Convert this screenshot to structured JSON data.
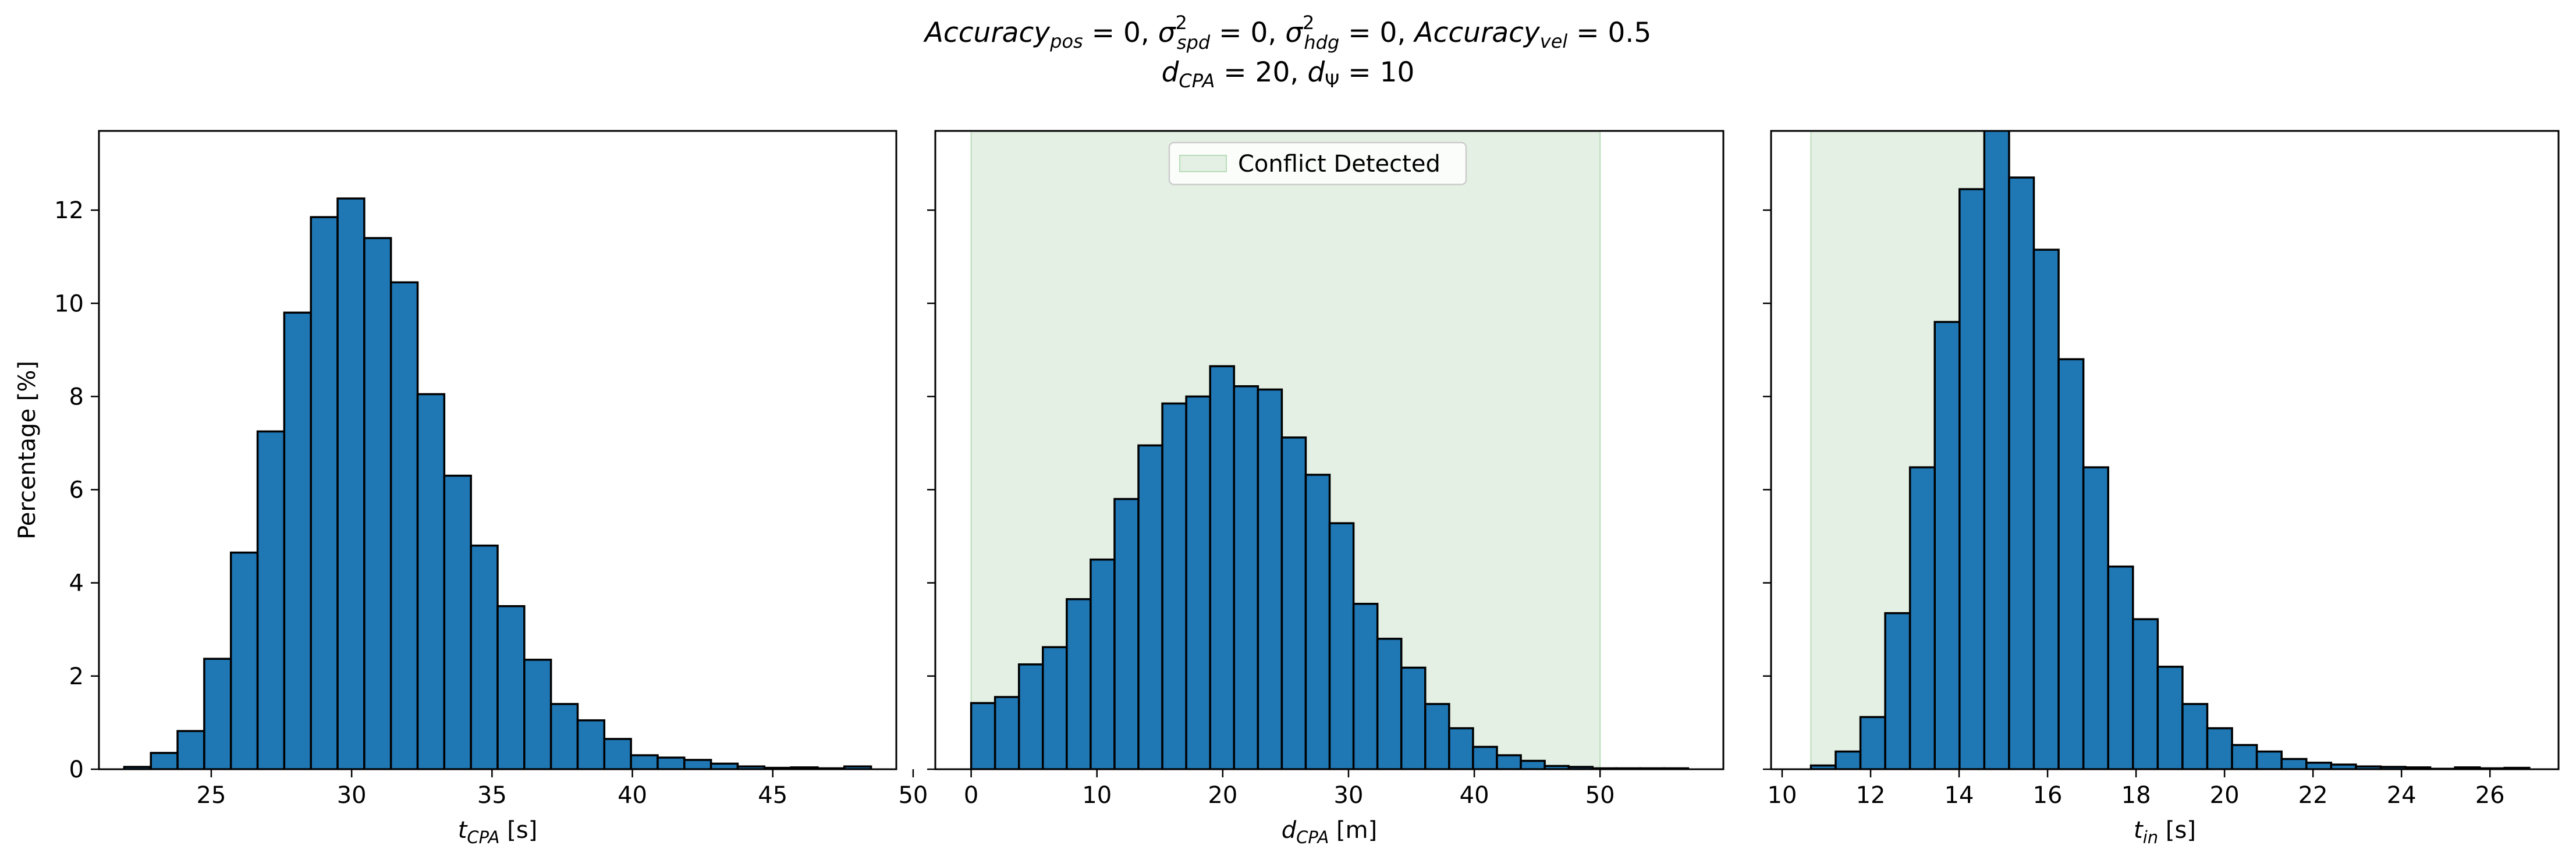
{
  "figure": {
    "title_line1": "Accuracy_pos = 0, σ²_spd = 0, σ²_hdg = 0, Accuracy_vel = 0.5",
    "title_line2": "d_CPA = 20, d_Ψ = 10"
  },
  "colors": {
    "bar_fill": "#1f77b4",
    "bar_edge": "#000000",
    "conflict_fill": "#e3f0e3",
    "conflict_edge": "#b9dcb9"
  },
  "chart_data": [
    {
      "type": "bar",
      "xlabel": "t_CPA [s]",
      "ylabel": "Percentage [%]",
      "xlim": [
        21.0,
        49.4
      ],
      "ylim": [
        0,
        13.7
      ],
      "xticks": [
        25,
        30,
        35,
        40,
        45,
        50
      ],
      "yticks": [
        0,
        2,
        4,
        6,
        8,
        10,
        12
      ],
      "bin_edges": [
        21.9,
        22.85,
        23.8,
        24.75,
        25.7,
        26.65,
        27.6,
        28.55,
        29.5,
        30.45,
        31.4,
        32.35,
        33.3,
        34.25,
        35.2,
        36.15,
        37.1,
        38.05,
        39.0,
        39.95,
        40.9,
        41.85,
        42.8,
        43.75,
        44.7,
        45.65,
        46.6,
        47.55,
        48.5
      ],
      "values": [
        0.05,
        0.35,
        0.82,
        2.37,
        4.65,
        7.25,
        9.8,
        11.85,
        12.25,
        11.4,
        10.45,
        8.05,
        6.3,
        4.8,
        3.5,
        2.35,
        1.4,
        1.05,
        0.65,
        0.3,
        0.25,
        0.2,
        0.12,
        0.06,
        0.03,
        0.04,
        0.02,
        0.06
      ]
    },
    {
      "type": "bar",
      "xlabel": "d_CPA [m]",
      "ylabel": "",
      "xlim": [
        -2.85,
        59.8
      ],
      "ylim": [
        0,
        13.7
      ],
      "xticks": [
        0,
        10,
        20,
        30,
        40,
        50
      ],
      "yticks": [
        0,
        2,
        4,
        6,
        8,
        10,
        12
      ],
      "shaded_region": {
        "x0": 0,
        "x1": 50,
        "label": "Conflict Detected"
      },
      "legend": {
        "placement": "upper center",
        "entries": [
          "Conflict Detected"
        ]
      },
      "bin_edges": [
        0.0,
        1.9,
        3.8,
        5.7,
        7.6,
        9.5,
        11.4,
        13.3,
        15.2,
        17.1,
        19.0,
        20.9,
        22.8,
        24.7,
        26.6,
        28.5,
        30.4,
        32.3,
        34.2,
        36.1,
        38.0,
        39.9,
        41.8,
        43.7,
        45.6,
        47.5,
        49.4,
        51.3,
        53.2,
        55.1,
        57.0
      ],
      "values": [
        1.42,
        1.55,
        2.25,
        2.62,
        3.65,
        4.5,
        5.8,
        6.95,
        7.85,
        8.0,
        8.65,
        8.22,
        8.15,
        7.12,
        6.32,
        5.28,
        3.55,
        2.8,
        2.18,
        1.4,
        0.88,
        0.48,
        0.3,
        0.18,
        0.07,
        0.05,
        0.02,
        0.02,
        0.02,
        0.02
      ]
    },
    {
      "type": "bar",
      "xlabel": "t_in [s]",
      "ylabel": "",
      "xlim": [
        9.75,
        27.55
      ],
      "ylim": [
        0,
        13.7
      ],
      "xticks": [
        10,
        12,
        14,
        16,
        18,
        20,
        22,
        24,
        26
      ],
      "yticks": [
        0,
        2,
        4,
        6,
        8,
        10,
        12
      ],
      "shaded_region": {
        "x0": 10.65,
        "x1": 15.0,
        "label": "Conflict Detected"
      },
      "bin_edges": [
        10.65,
        11.21,
        11.77,
        12.33,
        12.89,
        13.45,
        14.01,
        14.57,
        15.13,
        15.69,
        16.25,
        16.81,
        17.37,
        17.93,
        18.49,
        19.05,
        19.61,
        20.17,
        20.73,
        21.29,
        21.85,
        22.41,
        22.97,
        23.53,
        24.09,
        24.65,
        25.21,
        25.77,
        26.33,
        26.89
      ],
      "values": [
        0.08,
        0.38,
        1.12,
        3.35,
        6.48,
        9.6,
        12.45,
        13.8,
        12.7,
        11.15,
        8.8,
        6.48,
        4.35,
        3.22,
        2.2,
        1.4,
        0.88,
        0.52,
        0.38,
        0.22,
        0.14,
        0.1,
        0.06,
        0.05,
        0.04,
        0.01,
        0.04,
        0.02,
        0.03
      ]
    }
  ]
}
